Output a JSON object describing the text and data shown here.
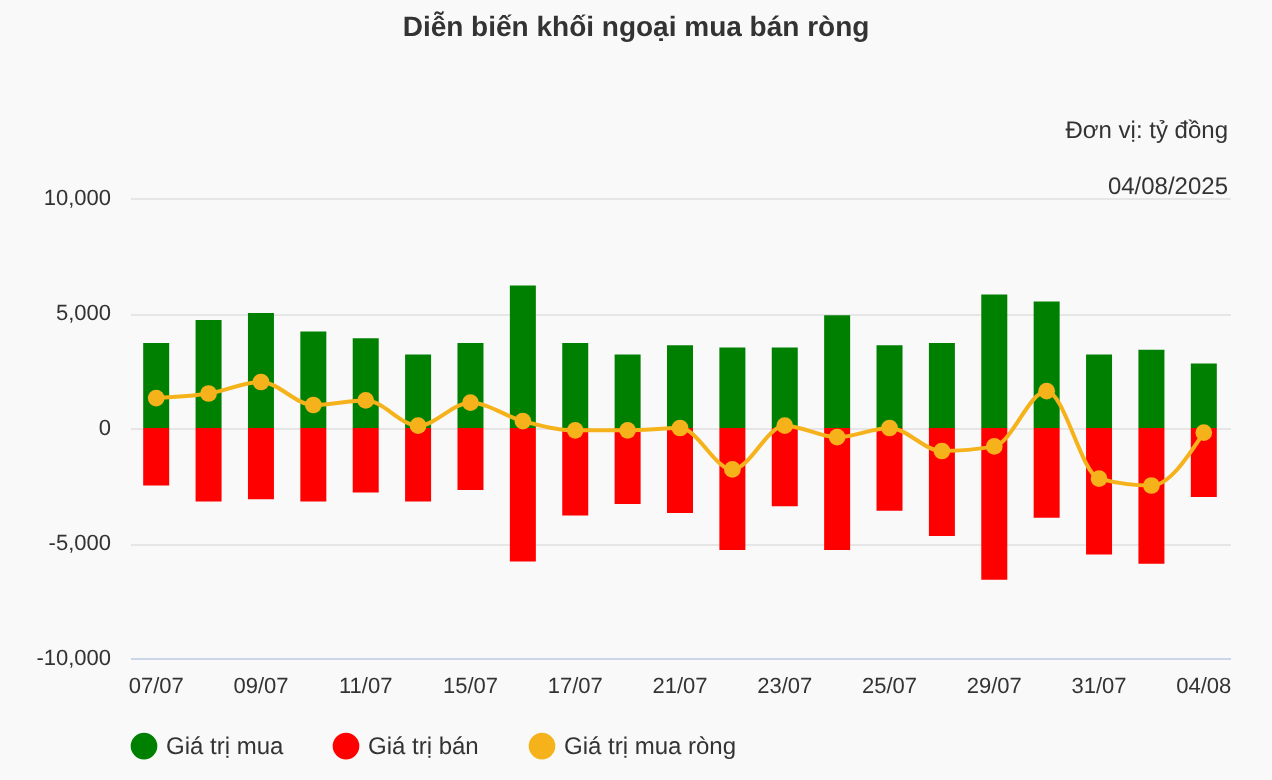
{
  "chart_data": {
    "type": "bar",
    "title": "Diễn biến khối ngoại mua bán ròng",
    "annotations": [
      "Đơn vị: tỷ đồng",
      "04/08/2025"
    ],
    "categories": [
      "07/07",
      null,
      "09/07",
      null,
      "11/07",
      null,
      "15/07",
      null,
      "17/07",
      null,
      "21/07",
      null,
      "23/07",
      null,
      "25/07",
      null,
      "29/07",
      null,
      "31/07",
      null,
      "04/08"
    ],
    "series": [
      {
        "name": "Giá trị mua",
        "color": "#008000",
        "values": [
          3700,
          4700,
          5000,
          4200,
          3900,
          3200,
          3700,
          6200,
          3700,
          3200,
          3600,
          3500,
          3500,
          4900,
          3600,
          3700,
          5800,
          5500,
          3200,
          3400,
          2800
        ]
      },
      {
        "name": "Giá trị bán",
        "color": "#ff0000",
        "values": [
          -2500,
          -3200,
          -3100,
          -3200,
          -2800,
          -3200,
          -2700,
          -5800,
          -3800,
          -3300,
          -3700,
          -5300,
          -3400,
          -5300,
          -3600,
          -4700,
          -6600,
          -3900,
          -5500,
          -5900,
          -3000
        ]
      },
      {
        "name": "Giá trị mua ròng",
        "type": "line",
        "color": "#f5b21b",
        "values": [
          1300,
          1500,
          2000,
          1000,
          1200,
          100,
          1100,
          300,
          -100,
          -100,
          0,
          -1800,
          100,
          -400,
          0,
          -1000,
          -800,
          1600,
          -2200,
          -2500,
          -200
        ]
      }
    ],
    "stacked": true,
    "ylim": [
      -10000,
      10000
    ],
    "yticks": [
      {
        "value": -10000,
        "label": "-10,000"
      },
      {
        "value": -5000,
        "label": "-5,000"
      },
      0,
      {
        "value": 5000,
        "label": "5,000"
      },
      {
        "value": 10000,
        "label": "10,000"
      }
    ],
    "grid": "y",
    "legend": "bottom",
    "marker": "circle"
  }
}
